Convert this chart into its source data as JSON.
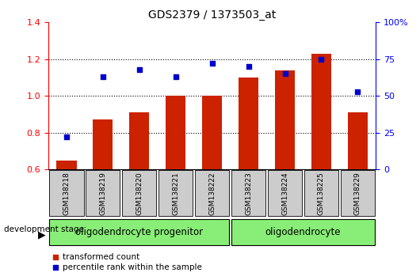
{
  "title": "GDS2379 / 1373503_at",
  "samples": [
    "GSM138218",
    "GSM138219",
    "GSM138220",
    "GSM138221",
    "GSM138222",
    "GSM138223",
    "GSM138224",
    "GSM138225",
    "GSM138229"
  ],
  "transformed_count": [
    0.65,
    0.87,
    0.91,
    1.0,
    1.0,
    1.1,
    1.14,
    1.23,
    0.91
  ],
  "percentile_rank": [
    22,
    63,
    68,
    63,
    72,
    70,
    65,
    75,
    53
  ],
  "ylim_left": [
    0.6,
    1.4
  ],
  "ylim_right": [
    0,
    100
  ],
  "yticks_left": [
    0.6,
    0.8,
    1.0,
    1.2,
    1.4
  ],
  "yticks_right": [
    0,
    25,
    50,
    75,
    100
  ],
  "ytick_labels_right": [
    "0",
    "25",
    "50",
    "75",
    "100%"
  ],
  "bar_color": "#cc2200",
  "scatter_color": "#0000cc",
  "group1_label": "oligodendrocyte progenitor",
  "group2_label": "oligodendrocyte",
  "group1_count": 5,
  "group2_count": 4,
  "group_bg_color": "#88ee77",
  "sample_bg_color": "#cccccc",
  "legend_bar_label": "transformed count",
  "legend_scatter_label": "percentile rank within the sample",
  "dev_stage_label": "development stage",
  "title_fontsize": 10,
  "tick_fontsize": 8,
  "group_fontsize": 8.5,
  "sample_fontsize": 6.5
}
